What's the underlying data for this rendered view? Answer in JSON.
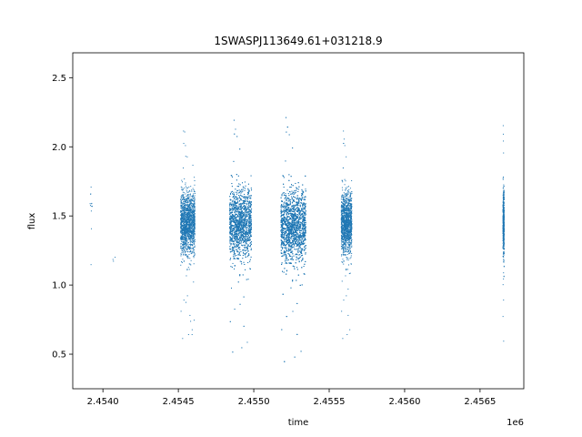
{
  "chart_data": {
    "type": "scatter",
    "title": "1SWASPJ113649.61+031218.9",
    "xlabel": "time",
    "ylabel": "flux",
    "x_offset_label": "1e6",
    "x_ticks": [
      "2.4540",
      "2.4545",
      "2.4550",
      "2.4555",
      "2.4560",
      "2.4565"
    ],
    "y_ticks": [
      "0.5",
      "1.0",
      "1.5",
      "2.0",
      "2.5"
    ],
    "xlim": [
      2453800,
      2456790
    ],
    "ylim": [
      0.25,
      2.68
    ],
    "grid": false,
    "series": [
      {
        "marker_color": "#1f77b4",
        "clusters": [
          {
            "x_range": [
              2453915,
              2453930
            ],
            "y_center": 1.5,
            "y_spread": 0.22,
            "count": 12
          },
          {
            "x_range": [
              2454065,
              2454085
            ],
            "y_center": 1.2,
            "y_spread": 0.1,
            "count": 3
          },
          {
            "x_range": [
              2454515,
              2454610
            ],
            "y_center": 1.45,
            "y_spread": 0.17,
            "count": 1600
          },
          {
            "x_range": [
              2454840,
              2454985
            ],
            "y_center": 1.45,
            "y_spread": 0.19,
            "count": 2600
          },
          {
            "x_range": [
              2455180,
              2455345
            ],
            "y_center": 1.43,
            "y_spread": 0.2,
            "count": 3400
          },
          {
            "x_range": [
              2455580,
              2455650
            ],
            "y_center": 1.45,
            "y_spread": 0.17,
            "count": 1400
          },
          {
            "x_range": [
              2456652,
              2456660
            ],
            "y_center": 1.45,
            "y_spread": 0.18,
            "count": 500
          }
        ]
      }
    ]
  }
}
